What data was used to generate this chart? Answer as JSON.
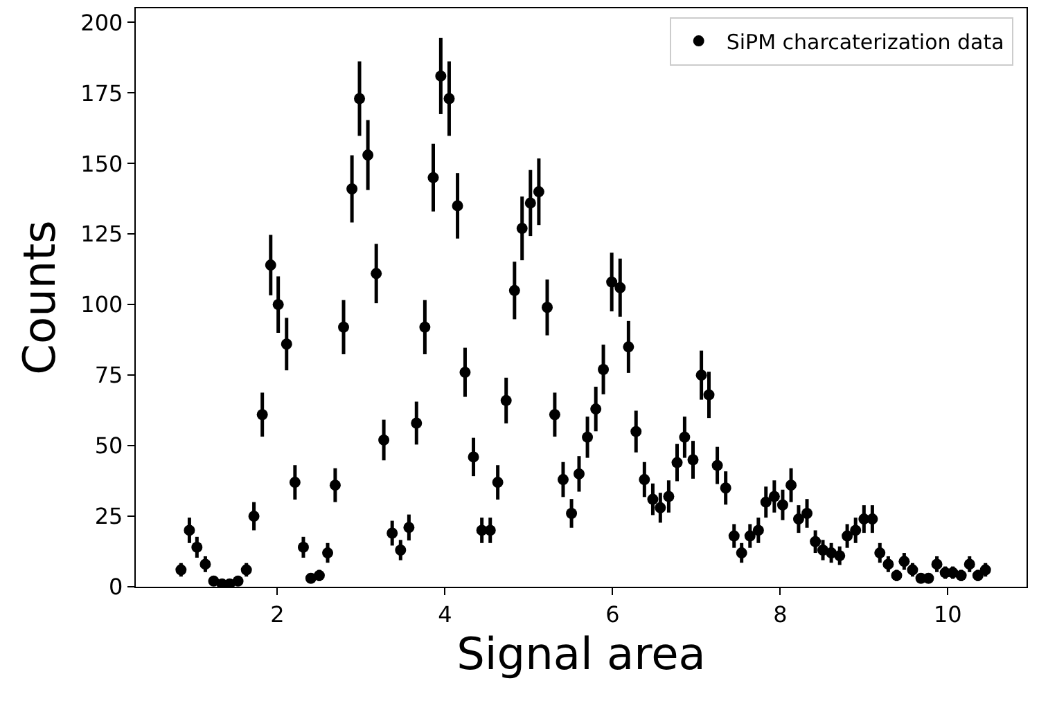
{
  "chart_data": {
    "type": "scatter",
    "xlabel": "Signal area",
    "ylabel": "Counts",
    "x": [
      0.85,
      0.95,
      1.04,
      1.14,
      1.24,
      1.34,
      1.43,
      1.53,
      1.63,
      1.72,
      1.82,
      1.92,
      2.01,
      2.11,
      2.21,
      2.31,
      2.4,
      2.5,
      2.6,
      2.69,
      2.79,
      2.89,
      2.98,
      3.08,
      3.18,
      3.27,
      3.37,
      3.47,
      3.57,
      3.66,
      3.76,
      3.86,
      3.95,
      4.05,
      4.15,
      4.24,
      4.34,
      4.44,
      4.54,
      4.63,
      4.73,
      4.83,
      4.92,
      5.02,
      5.12,
      5.22,
      5.31,
      5.41,
      5.51,
      5.6,
      5.7,
      5.8,
      5.89,
      5.99,
      6.09,
      6.19,
      6.28,
      6.38,
      6.48,
      6.57,
      6.67,
      6.77,
      6.86,
      6.96,
      7.06,
      7.15,
      7.25,
      7.35,
      7.45,
      7.54,
      7.64,
      7.74,
      7.83,
      7.93,
      8.03,
      8.13,
      8.22,
      8.32,
      8.42,
      8.51,
      8.61,
      8.71,
      8.8,
      8.9,
      9.0,
      9.1,
      9.19,
      9.29,
      9.39,
      9.48,
      9.58,
      9.68,
      9.77,
      9.87,
      9.97,
      10.06,
      10.16,
      10.26,
      10.36,
      10.45
    ],
    "series": [
      {
        "name": "SiPM charcaterization data",
        "color": "#000000",
        "values": [
          6,
          20,
          14,
          8,
          2,
          1,
          1,
          2,
          6,
          25,
          61,
          114,
          100,
          86,
          37,
          14,
          3,
          4,
          12,
          36,
          92,
          141,
          173,
          153,
          111,
          52,
          19,
          13,
          21,
          58,
          92,
          145,
          181,
          173,
          135,
          76,
          46,
          20,
          20,
          37,
          66,
          105,
          127,
          136,
          140,
          99,
          61,
          38,
          26,
          40,
          53,
          63,
          77,
          108,
          106,
          85,
          55,
          38,
          31,
          28,
          32,
          44,
          53,
          45,
          75,
          68,
          43,
          35,
          18,
          12,
          18,
          20,
          30,
          32,
          29,
          36,
          24,
          26,
          16,
          13,
          12,
          11,
          18,
          20,
          24,
          24,
          12,
          8,
          4,
          9,
          6,
          3,
          3,
          8,
          5,
          5,
          4,
          8,
          4,
          6
        ],
        "errors": [
          2.4,
          4.5,
          3.7,
          2.8,
          1.4,
          1,
          1,
          1.4,
          2.4,
          5,
          7.8,
          10.7,
          10,
          9.3,
          6.1,
          3.7,
          1.7,
          2,
          3.5,
          6,
          9.6,
          11.9,
          13.2,
          12.4,
          10.5,
          7.2,
          4.4,
          3.6,
          4.6,
          7.6,
          9.6,
          12,
          13.5,
          13.2,
          11.6,
          8.7,
          6.8,
          4.5,
          4.5,
          6.1,
          8.1,
          10.2,
          11.3,
          11.7,
          11.8,
          9.9,
          7.8,
          6.2,
          5.1,
          6.3,
          7.3,
          7.9,
          8.8,
          10.4,
          10.3,
          9.2,
          7.4,
          6.2,
          5.6,
          5.3,
          5.7,
          6.6,
          7.3,
          6.7,
          8.7,
          8.2,
          6.6,
          5.9,
          4.2,
          3.5,
          4.2,
          4.5,
          5.5,
          5.7,
          5.4,
          6,
          4.9,
          5.1,
          4,
          3.6,
          3.5,
          3.3,
          4.2,
          4.5,
          4.9,
          4.9,
          3.5,
          2.8,
          2,
          3,
          2.4,
          1.7,
          1.7,
          2.8,
          2.2,
          2.2,
          2,
          2.8,
          2,
          2.4
        ]
      }
    ],
    "xlim": [
      0.31,
      10.94
    ],
    "xticks": [
      2,
      4,
      6,
      8,
      10
    ],
    "ylim": [
      0,
      205
    ],
    "yticks": [
      0,
      25,
      50,
      75,
      100,
      125,
      150,
      175,
      200
    ],
    "marker": "circle",
    "legend": "top right"
  }
}
